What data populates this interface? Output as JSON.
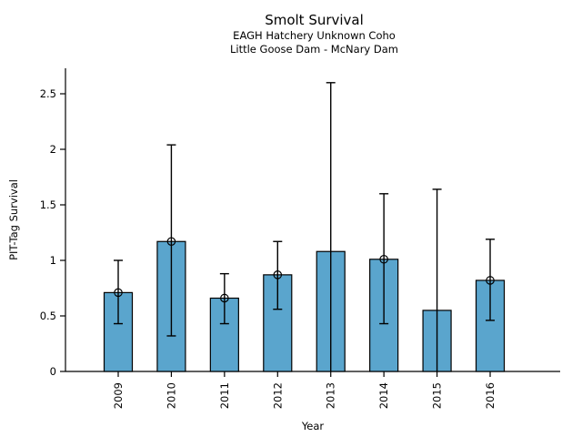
{
  "chart_data": {
    "type": "bar",
    "title": "Smolt Survival",
    "subtitle1": "EAGH Hatchery Unknown Coho",
    "subtitle2": "Little Goose Dam - McNary Dam",
    "xlabel": "Year",
    "ylabel": "PIT-Tag Survival",
    "categories": [
      "2009",
      "2010",
      "2011",
      "2012",
      "2013",
      "2014",
      "2015",
      "2016"
    ],
    "values": [
      0.71,
      1.17,
      0.66,
      0.87,
      1.08,
      1.01,
      0.55,
      0.82
    ],
    "error_low": [
      0.43,
      0.32,
      0.43,
      0.56,
      0.0,
      0.43,
      0.0,
      0.46
    ],
    "error_high": [
      1.0,
      2.04,
      0.88,
      1.17,
      2.6,
      1.6,
      1.64,
      1.19
    ],
    "point_markers": [
      true,
      true,
      true,
      true,
      false,
      true,
      false,
      true
    ],
    "yticks": [
      0,
      0.5,
      1,
      1.5,
      2,
      2.5
    ],
    "ytick_labels": [
      "0",
      "0.5",
      "1",
      "1.5",
      "2",
      "2.5"
    ],
    "ylim": [
      0,
      2.73
    ],
    "grid": false,
    "legend": "none",
    "bar_color": "#5AA5CD",
    "edge_color": "#000000",
    "axis_color": "#000000"
  }
}
